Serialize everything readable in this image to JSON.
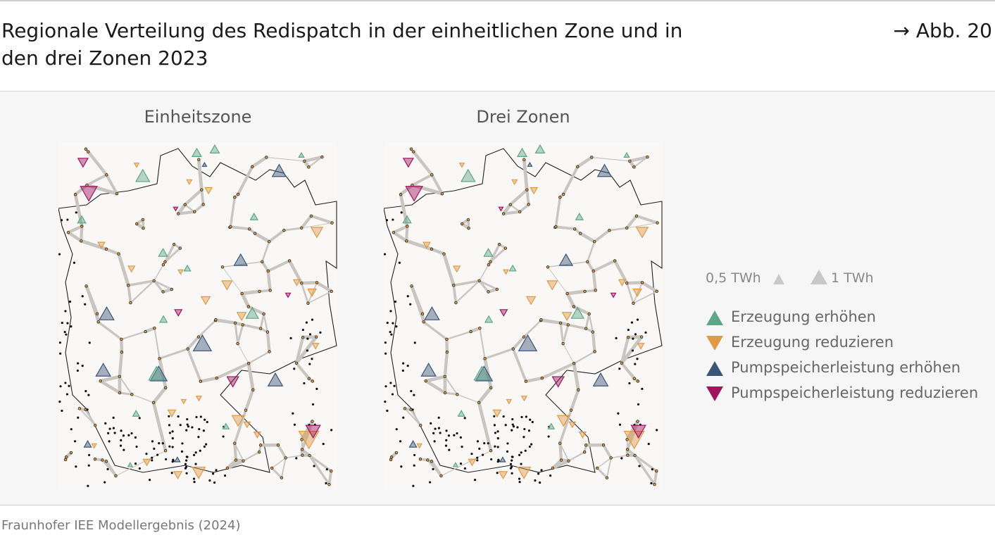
{
  "title": "Regionale Verteilung des Redispatch in der einheitlichen Zone und in den drei Zonen 2023",
  "figure_ref": "→ Abb. 20",
  "maps": [
    {
      "title": "Einheitszone"
    },
    {
      "title": "Drei Zonen"
    }
  ],
  "legend": {
    "size_small_label": "0,5 TWh",
    "size_large_label": "1 TWh",
    "items": [
      {
        "label": "Erzeugung erhöhen",
        "color": "#5fa58a",
        "icon": "triangle-up-icon"
      },
      {
        "label": "Erzeugung reduzieren",
        "color": "#e09a45",
        "icon": "triangle-down-icon"
      },
      {
        "label": "Pumpspeicherleistung erhöhen",
        "color": "#3b5578",
        "icon": "triangle-up-icon"
      },
      {
        "label": "Pumpspeicherleistung reduzieren",
        "color": "#a0135f",
        "icon": "triangle-down-icon"
      }
    ]
  },
  "source": "Fraunhofer IEE Modellergebnis (2024)"
}
